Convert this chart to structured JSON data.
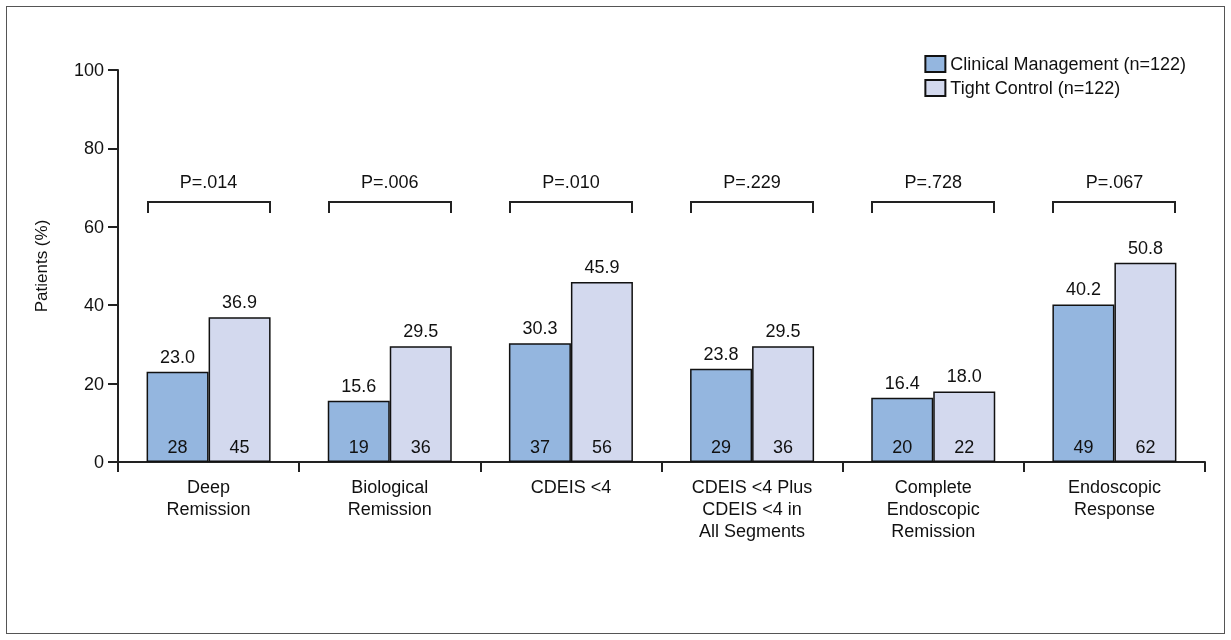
{
  "chart_data": {
    "type": "bar",
    "ylabel": "Patients (%)",
    "categories": [
      "Deep\nRemission",
      "Biological\nRemission",
      "CDEIS <4",
      "CDEIS <4 Plus\nCDEIS <4 in\nAll Segments",
      "Complete\nEndoscopic\nRemission",
      "Endoscopic\nResponse"
    ],
    "series": [
      {
        "name": "Clinical Management (n=122)",
        "color": "#94b6df",
        "values": [
          23.0,
          15.6,
          30.3,
          23.8,
          16.4,
          40.2
        ],
        "value_labels": [
          "23.0",
          "15.6",
          "30.3",
          "23.8",
          "16.4",
          "40.2"
        ]
      },
      {
        "name": "Tight Control (n=122)",
        "color": "#d3d9ee",
        "values": [
          36.9,
          29.5,
          45.9,
          29.5,
          18.0,
          50.8
        ],
        "value_labels": [
          "36.9",
          "29.5",
          "45.9",
          "29.5",
          "18.0",
          "50.8"
        ]
      }
    ],
    "ylim": [
      0,
      100
    ],
    "yticks": [
      0,
      20,
      40,
      60,
      80,
      100
    ],
    "grid": false,
    "legend": "top right",
    "annotations": [
      "P=.014",
      "P=.006",
      "P=.010",
      "P=.229",
      "P=.728",
      "P=.067",
      {
        "text": "28",
        "x": "Deep\nRemission",
        "y": 3
      },
      {
        "text": "45",
        "x": "Deep\nRemission",
        "y": 3
      },
      {
        "text": "19",
        "x": "Biological\nRemission",
        "y": 3
      },
      {
        "text": "36",
        "x": "Biological\nRemission",
        "y": 3
      },
      {
        "text": "37",
        "x": "CDEIS <4",
        "y": 3
      },
      {
        "text": "56",
        "x": "CDEIS <4",
        "y": 3
      },
      {
        "text": "29",
        "x": "CDEIS <4 Plus\nCDEIS <4 in\nAll Segments",
        "y": 3
      },
      {
        "text": "36",
        "x": "CDEIS <4 Plus\nCDEIS <4 in\nAll Segments",
        "y": 3
      },
      {
        "text": "20",
        "x": "Complete\nEndoscopic\nRemission",
        "y": 3
      },
      {
        "text": "22",
        "x": "Complete\nEndoscopic\nRemission",
        "y": 3
      },
      {
        "text": "49",
        "x": "Endoscopic\nResponse",
        "y": 3
      },
      {
        "text": "62",
        "x": "Endoscopic\nResponse",
        "y": 3
      }
    ]
  }
}
